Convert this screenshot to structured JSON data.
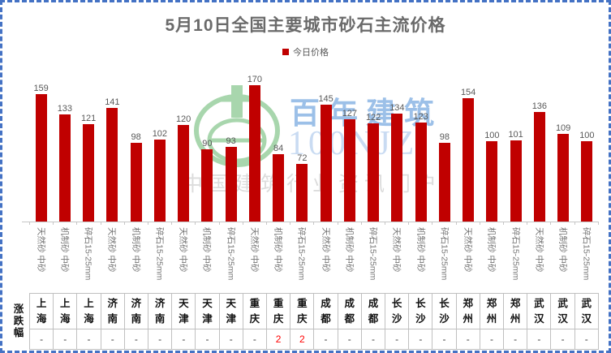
{
  "title": "5月10日全国主要城市砂石主流价格",
  "legend": {
    "label": "今日价格",
    "marker_color": "#C00000"
  },
  "watermark": {
    "brand": "百年建筑",
    "brand_latin": "100NJZ",
    "tagline": "中国建筑行业资讯门户",
    "logo_color": "#A8D6AD",
    "brand_color": "#9CC0E8"
  },
  "table": {
    "row_header": "涨跌幅",
    "change_up_color": "#FF0000"
  },
  "chart_data": {
    "type": "bar",
    "title": "5月10日全国主要城市砂石主流价格",
    "legend_entries": [
      "今日价格"
    ],
    "bar_color": "#C00000",
    "gridlines": false,
    "ylim": [
      0,
      180
    ],
    "cities": [
      "上海",
      "上海",
      "上海",
      "济南",
      "济南",
      "济南",
      "天津",
      "天津",
      "天津",
      "重庆",
      "重庆",
      "重庆",
      "成都",
      "成都",
      "成都",
      "长沙",
      "长沙",
      "长沙",
      "郑州",
      "郑州",
      "郑州",
      "武汉",
      "武汉",
      "武汉"
    ],
    "categories": [
      "天然砂 中砂",
      "机制砂 中砂",
      "碎石15-25mm",
      "天然砂 中砂",
      "机制砂 中砂",
      "碎石15-25mm",
      "天然砂 中砂",
      "机制砂 中砂",
      "碎石15-25mm",
      "天然砂 中砂",
      "机制砂 中砂",
      "碎石15-25mm",
      "天然砂 中砂",
      "机制砂 中砂",
      "碎石15-25mm",
      "天然砂 中砂",
      "机制砂 中砂",
      "碎石15-25mm",
      "天然砂 中砂",
      "机制砂 中砂",
      "碎石15-25mm",
      "天然砂 中砂",
      "机制砂 中砂",
      "碎石15-25mm"
    ],
    "values": [
      159,
      133,
      121,
      141,
      98,
      102,
      120,
      90,
      93,
      170,
      84,
      72,
      145,
      127,
      122,
      134,
      123,
      98,
      154,
      100,
      101,
      136,
      109,
      100
    ],
    "changes": [
      "-",
      "-",
      "-",
      "-",
      "-",
      "-",
      "-",
      "-",
      "-",
      "-",
      "2",
      "2",
      "-",
      "-",
      "-",
      "-",
      "-",
      "-",
      "-",
      "-",
      "-",
      "-",
      "-",
      "-"
    ]
  }
}
